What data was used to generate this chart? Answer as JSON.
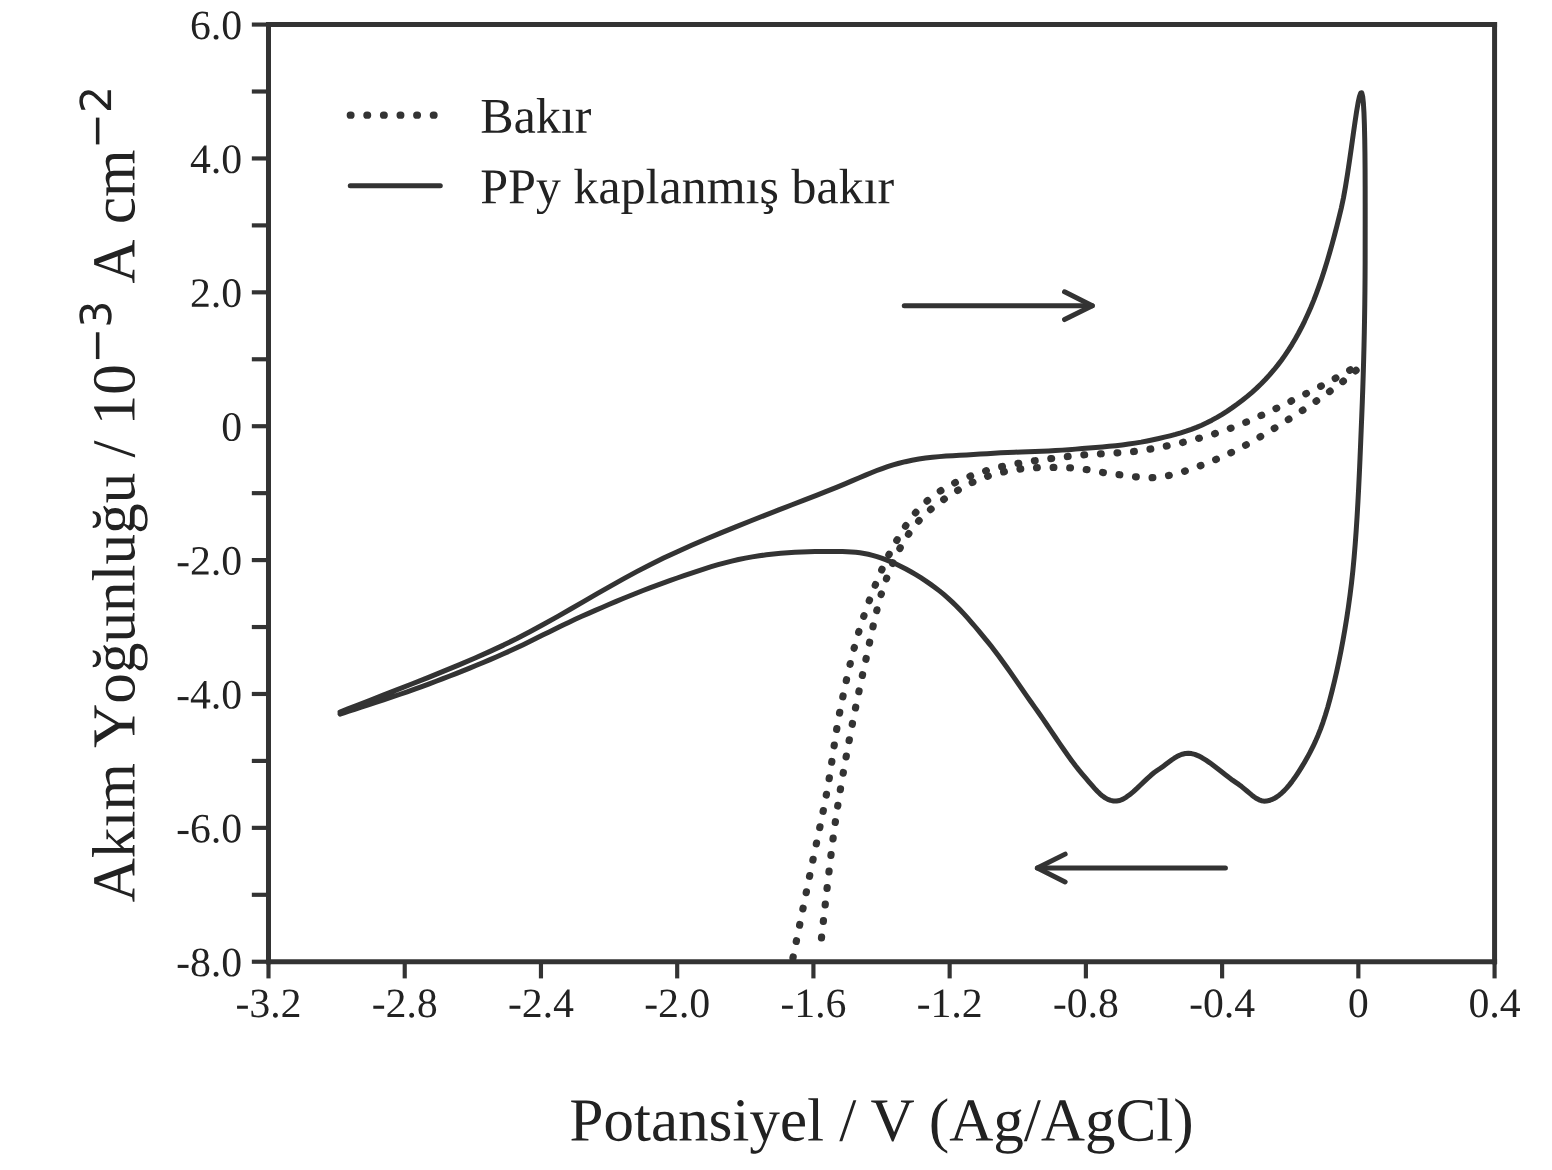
{
  "chart_data": {
    "type": "line",
    "xlabel": "Potansiyel / V (Ag/AgCl)",
    "ylabel": "Akım Yoğunluğu / 10$^{−3}$ A cm$^{−2}$",
    "xlim": [
      -3.2,
      0.4
    ],
    "ylim": [
      -8.0,
      6.0
    ],
    "xticks": [
      {
        "value": -3.2,
        "label": "-3.2"
      },
      {
        "value": -2.8,
        "label": "-2.8"
      },
      {
        "value": -2.4,
        "label": "-2.4"
      },
      {
        "value": -2.0,
        "label": "-2.0"
      },
      {
        "value": -1.6,
        "label": "-1.6"
      },
      {
        "value": -1.2,
        "label": "-1.2"
      },
      {
        "value": -0.8,
        "label": "-0.8"
      },
      {
        "value": -0.4,
        "label": "-0.4"
      },
      {
        "value": 0,
        "label": "0"
      },
      {
        "value": 0.4,
        "label": "0.4"
      }
    ],
    "yticks": [
      {
        "value": -8,
        "label": "-8.0"
      },
      {
        "value": -7,
        "label": null
      },
      {
        "value": -6,
        "label": "-6.0"
      },
      {
        "value": -5,
        "label": null
      },
      {
        "value": -4,
        "label": "-4.0"
      },
      {
        "value": -3,
        "label": null
      },
      {
        "value": -2,
        "label": "-2.0"
      },
      {
        "value": -1,
        "label": null
      },
      {
        "value": 0,
        "label": "0"
      },
      {
        "value": 1,
        "label": null
      },
      {
        "value": 2,
        "label": "2.0"
      },
      {
        "value": 3,
        "label": null
      },
      {
        "value": 4,
        "label": "4.0"
      },
      {
        "value": 5,
        "label": null
      },
      {
        "value": 6,
        "label": "6.0"
      }
    ],
    "grid": false,
    "legend": "top left",
    "marker": "none",
    "series": [
      {
        "name": "Bakır",
        "color": "#333333",
        "line_style": "dotted",
        "x": [
          -1.66,
          -1.61,
          -1.56,
          -1.52,
          -1.46,
          -1.37,
          -1.26,
          -1.09,
          -0.85,
          -0.62,
          -0.38,
          -0.14,
          0.0,
          -0.05,
          -0.19,
          -0.38,
          -0.57,
          -0.71,
          -0.85,
          -1.02,
          -1.16,
          -1.3,
          -1.39,
          -1.45,
          -1.5,
          -1.54,
          -1.58
        ],
        "values": [
          -7.94,
          -6.69,
          -5.45,
          -4.2,
          -2.96,
          -1.84,
          -1.09,
          -0.66,
          -0.45,
          -0.35,
          -0.04,
          0.52,
          0.9,
          0.65,
          0.15,
          -0.41,
          -0.75,
          -0.72,
          -0.62,
          -0.66,
          -0.91,
          -1.47,
          -2.34,
          -3.58,
          -4.83,
          -6.07,
          -7.81
        ]
      },
      {
        "name": "PPy kaplanmış bakır",
        "color": "#333333",
        "line_style": "solid",
        "x": [
          -2.99,
          -2.51,
          -2.04,
          -1.56,
          -1.33,
          -1.09,
          -0.85,
          -0.62,
          -0.43,
          -0.26,
          -0.14,
          -0.05,
          0.01,
          0.02,
          0.01,
          -0.02,
          -0.09,
          -0.18,
          -0.27,
          -0.36,
          -0.49,
          -0.59,
          -0.71,
          -0.81,
          -0.95,
          -1.09,
          -1.23,
          -1.4,
          -1.56,
          -1.8,
          -2.04,
          -2.28,
          -2.51,
          -2.75,
          -2.99
        ],
        "values": [
          -4.27,
          -3.27,
          -1.97,
          -0.97,
          -0.53,
          -0.41,
          -0.35,
          -0.22,
          0.09,
          0.77,
          1.77,
          3.26,
          4.98,
          2.64,
          0.15,
          -2.34,
          -4.2,
          -5.2,
          -5.6,
          -5.32,
          -4.89,
          -5.14,
          -5.6,
          -5.2,
          -4.2,
          -3.21,
          -2.46,
          -1.97,
          -1.87,
          -1.97,
          -2.34,
          -2.84,
          -3.4,
          -3.89,
          -4.3
        ]
      }
    ]
  }
}
